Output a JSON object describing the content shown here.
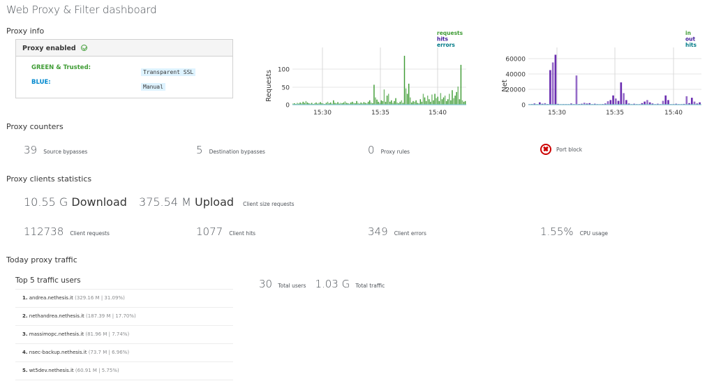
{
  "page": {
    "title": "Web Proxy & Filter dashboard"
  },
  "proxy_info": {
    "section_title": "Proxy info",
    "status_label": "Proxy enabled",
    "status_icon": "check-circle-icon",
    "interfaces": [
      {
        "name": "GREEN & Trusted:",
        "mode": "Transparent SSL",
        "color": "#3f9c35"
      },
      {
        "name": "BLUE:",
        "mode": "Manual",
        "color": "#0088ce"
      }
    ]
  },
  "charts": {
    "requests": {
      "ylabel": "Requests",
      "yticks": [
        "0",
        "50",
        "100"
      ],
      "xticks": [
        "15:30",
        "15:35",
        "15:40"
      ],
      "legend": [
        {
          "label": "requests",
          "color": "#3f9c35"
        },
        {
          "label": "hits",
          "color": "#40199a"
        },
        {
          "label": "errors",
          "color": "#007a87"
        }
      ]
    },
    "net": {
      "ylabel": "Net",
      "yticks": [
        "0",
        "20000",
        "40000",
        "60000"
      ],
      "xticks": [
        "15:30",
        "15:35",
        "15:40"
      ],
      "legend": [
        {
          "label": "in",
          "color": "#3f9c35"
        },
        {
          "label": "out",
          "color": "#40199a"
        },
        {
          "label": "hits",
          "color": "#007a87"
        }
      ]
    }
  },
  "chart_data": [
    {
      "type": "bar",
      "title": "",
      "xlabel": "",
      "ylabel": "Requests",
      "ylim": [
        0,
        140
      ],
      "grid": true,
      "legend_position": "top-right",
      "x_ticks": [
        "15:30",
        "15:35",
        "15:40"
      ],
      "legend": [
        "requests",
        "hits",
        "errors"
      ],
      "series": [
        {
          "name": "requests",
          "values": [
            3,
            4,
            2,
            5,
            3,
            6,
            4,
            8,
            5,
            10,
            6,
            4,
            3,
            5,
            2,
            4,
            6,
            3,
            5,
            7,
            4,
            3,
            2,
            5,
            8,
            4,
            6,
            3,
            12,
            5,
            4,
            7,
            3,
            5,
            4,
            6,
            9,
            5,
            4,
            3,
            6,
            8,
            5,
            4,
            10,
            5,
            3,
            6,
            4,
            7,
            5,
            4,
            8,
            12,
            6,
            4,
            55,
            20,
            14,
            8,
            5,
            12,
            10,
            42,
            8,
            25,
            30,
            8,
            12,
            5,
            10,
            18,
            6,
            4,
            8,
            12,
            5,
            135,
            45,
            30,
            58,
            20,
            6,
            10,
            8,
            12,
            5,
            4,
            15,
            8,
            30,
            20,
            10,
            25,
            15,
            8,
            28,
            12,
            30,
            18,
            22,
            10,
            32,
            15,
            20,
            25,
            10,
            15,
            30,
            12,
            40,
            18,
            25,
            35,
            50,
            15,
            110,
            12,
            8,
            10
          ]
        },
        {
          "name": "hits",
          "values": [
            0
          ]
        },
        {
          "name": "errors",
          "values": [
            0
          ]
        }
      ]
    },
    {
      "type": "bar",
      "title": "",
      "xlabel": "",
      "ylabel": "Net",
      "ylim": [
        0,
        75000
      ],
      "grid": true,
      "legend_position": "top-right",
      "x_ticks": [
        "15:30",
        "15:35",
        "15:40"
      ],
      "legend": [
        "in",
        "out",
        "hits"
      ],
      "series": [
        {
          "name": "in",
          "values": [
            0
          ]
        },
        {
          "name": "out",
          "values": [
            500,
            800,
            1500,
            600,
            3000,
            1200,
            2000,
            800,
            45000,
            55000,
            65000,
            1000,
            400,
            600,
            300,
            800,
            1500,
            500,
            38000,
            800,
            1200,
            2500,
            1500,
            2000,
            800,
            1200,
            600,
            500,
            800,
            1500,
            4500,
            6000,
            12000,
            8000,
            5000,
            29000,
            15000,
            6000,
            1500,
            800,
            1200,
            500,
            800,
            2000,
            4000,
            6000,
            3000,
            1500,
            800,
            1200,
            600,
            5000,
            12000,
            6000,
            800,
            500,
            1200,
            800,
            600,
            1000,
            11000,
            2000,
            9000,
            4000,
            1500,
            3000
          ]
        },
        {
          "name": "hits",
          "values": [
            0
          ]
        }
      ]
    }
  ],
  "proxy_counters": {
    "section_title": "Proxy counters",
    "items": [
      {
        "value": "39",
        "label": "Source bypasses"
      },
      {
        "value": "5",
        "label": "Destination bypasses"
      },
      {
        "value": "0",
        "label": "Proxy rules"
      },
      {
        "value": "",
        "label": "Port block",
        "icon": "error-circle-icon"
      }
    ]
  },
  "client_stats": {
    "section_title": "Proxy clients statistics",
    "download_value": "10.55 G",
    "download_label": "Download",
    "upload_value": "375.54 M",
    "upload_label": "Upload",
    "size_caption": "Client size requests",
    "items": [
      {
        "value": "112738",
        "label": "Client requests"
      },
      {
        "value": "1077",
        "label": "Client hits"
      },
      {
        "value": "349",
        "label": "Client errors"
      },
      {
        "value": "1.55%",
        "label": "CPU usage"
      }
    ]
  },
  "today_traffic": {
    "section_title": "Today proxy traffic",
    "top_title": "Top 5 traffic users",
    "top_users": [
      {
        "rank": "1.",
        "host": "andrea.nethesis.it",
        "detail": "(329.16 M | 31.09%)"
      },
      {
        "rank": "2.",
        "host": "nethandrea.nethesis.it",
        "detail": "(187.39 M | 17.70%)"
      },
      {
        "rank": "3.",
        "host": "massimopc.nethesis.it",
        "detail": "(81.96 M | 7.74%)"
      },
      {
        "rank": "4.",
        "host": "nsec-backup.nethesis.it",
        "detail": "(73.7 M | 6.96%)"
      },
      {
        "rank": "5.",
        "host": "wt5dev.nethesis.it",
        "detail": "(60.91 M | 5.75%)"
      }
    ],
    "total_users_value": "30",
    "total_users_label": "Total users",
    "total_traffic_value": "1.03 G",
    "total_traffic_label": "Total traffic"
  }
}
